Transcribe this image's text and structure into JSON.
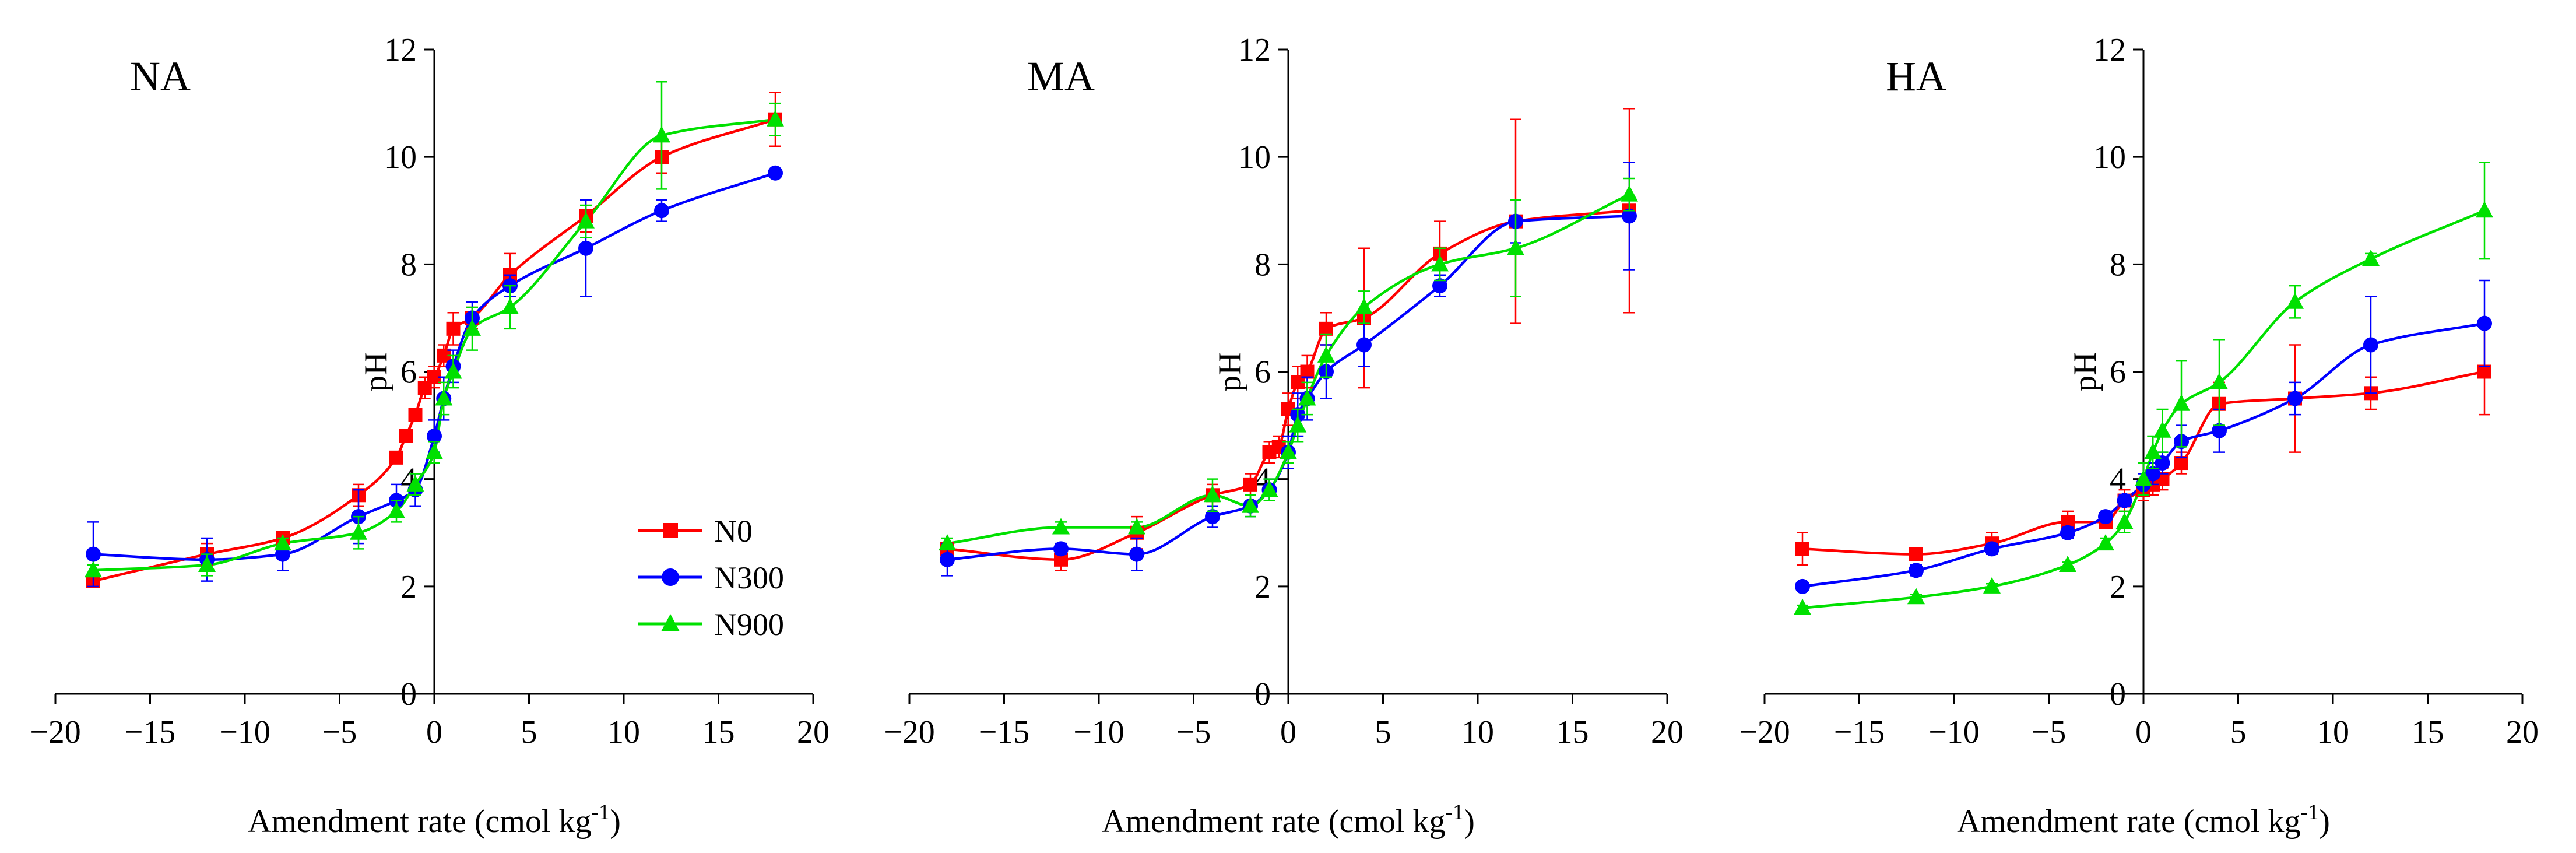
{
  "figure": {
    "y_tick_labels": [
      "0",
      "2",
      "4",
      "6",
      "8",
      "10",
      "12"
    ],
    "x_tick_labels": [
      "−20",
      "−15",
      "−10",
      "−5",
      "0",
      "5",
      "10",
      "15",
      "20"
    ],
    "xlabel_main": "Amendment rate (cmol kg",
    "xlabel_sup": "-1",
    "xlabel_close": ")",
    "ylabel": "pH",
    "legend": [
      "N0",
      "N300",
      "N900"
    ]
  },
  "colors": {
    "N0": "#ff0000",
    "N300": "#0000ff",
    "N900": "#00e000",
    "axis": "#000000"
  },
  "chart_data": [
    {
      "type": "line",
      "title": "NA",
      "xlabel": "Amendment rate (cmol kg-1)",
      "ylabel": "pH",
      "xlim": [
        -20,
        20
      ],
      "ylim": [
        0,
        12
      ],
      "series": [
        {
          "name": "N0",
          "marker": "square",
          "x": [
            -18,
            -12,
            -8,
            -4,
            -2,
            -1.5,
            -1,
            -0.5,
            0,
            0.5,
            1,
            2,
            4,
            8,
            12,
            18
          ],
          "y": [
            2.1,
            2.6,
            2.9,
            3.7,
            4.4,
            4.8,
            5.2,
            5.7,
            5.9,
            6.3,
            6.8,
            7.0,
            7.8,
            8.9,
            10.0,
            10.7
          ],
          "err": [
            0.05,
            0.2,
            0.1,
            0.2,
            0.1,
            0.1,
            0.1,
            0.2,
            0.2,
            0.2,
            0.3,
            0.2,
            0.4,
            0.3,
            0.3,
            0.5
          ]
        },
        {
          "name": "N300",
          "marker": "circle",
          "x": [
            -18,
            -12,
            -8,
            -4,
            -2,
            -1,
            0,
            0.5,
            1,
            2,
            4,
            8,
            12,
            18
          ],
          "y": [
            2.6,
            2.5,
            2.6,
            3.3,
            3.6,
            3.8,
            4.8,
            5.5,
            6.1,
            7.0,
            7.6,
            8.3,
            9.0,
            9.7
          ],
          "err": [
            0.6,
            0.4,
            0.3,
            0.5,
            0.3,
            0.3,
            0.3,
            0.4,
            0.3,
            0.3,
            0.2,
            0.9,
            0.2,
            0.05
          ]
        },
        {
          "name": "N900",
          "marker": "triangle",
          "x": [
            -18,
            -12,
            -8,
            -4,
            -2,
            -1,
            0,
            0.5,
            1,
            2,
            4,
            8,
            12,
            18
          ],
          "y": [
            2.3,
            2.4,
            2.8,
            3.0,
            3.4,
            3.9,
            4.5,
            5.5,
            6.0,
            6.8,
            7.2,
            8.8,
            10.4,
            10.7
          ],
          "err": [
            0.1,
            0.2,
            0.1,
            0.3,
            0.2,
            0.2,
            0.2,
            0.3,
            0.3,
            0.4,
            0.4,
            0.3,
            1.0,
            0.3
          ]
        }
      ]
    },
    {
      "type": "line",
      "title": "MA",
      "xlabel": "Amendment rate (cmol kg-1)",
      "ylabel": "pH",
      "xlim": [
        -20,
        20
      ],
      "ylim": [
        0,
        12
      ],
      "series": [
        {
          "name": "N0",
          "marker": "square",
          "x": [
            -18,
            -12,
            -8,
            -4,
            -2,
            -1,
            -0.5,
            0,
            0.5,
            1,
            2,
            4,
            8,
            12,
            18
          ],
          "y": [
            2.7,
            2.5,
            3.0,
            3.7,
            3.9,
            4.5,
            4.6,
            5.3,
            5.8,
            6.0,
            6.8,
            7.0,
            8.2,
            8.8,
            9.0
          ],
          "err": [
            0.1,
            0.2,
            0.3,
            0.2,
            0.2,
            0.2,
            0.2,
            0.3,
            0.3,
            0.3,
            0.3,
            1.3,
            0.6,
            1.9,
            1.9
          ]
        },
        {
          "name": "N300",
          "marker": "circle",
          "x": [
            -18,
            -12,
            -8,
            -4,
            -2,
            -1,
            0,
            0.5,
            1,
            2,
            4,
            8,
            12,
            18
          ],
          "y": [
            2.5,
            2.7,
            2.6,
            3.3,
            3.5,
            3.8,
            4.5,
            5.2,
            5.5,
            6.0,
            6.5,
            7.6,
            8.8,
            8.9
          ],
          "err": [
            0.3,
            0.1,
            0.3,
            0.2,
            0.2,
            0.2,
            0.3,
            0.4,
            0.4,
            0.5,
            0.4,
            0.2,
            0.4,
            1.0
          ]
        },
        {
          "name": "N900",
          "marker": "triangle",
          "x": [
            -18,
            -12,
            -8,
            -4,
            -2,
            -1,
            0,
            0.5,
            1,
            2,
            4,
            8,
            12,
            18
          ],
          "y": [
            2.8,
            3.1,
            3.1,
            3.7,
            3.5,
            3.8,
            4.5,
            5.0,
            5.5,
            6.3,
            7.2,
            8.0,
            8.3,
            9.3
          ],
          "err": [
            0.1,
            0.1,
            0.1,
            0.3,
            0.2,
            0.2,
            0.2,
            0.3,
            0.3,
            0.4,
            0.3,
            0.3,
            0.9,
            0.3
          ]
        }
      ]
    },
    {
      "type": "line",
      "title": "HA",
      "xlabel": "Amendment rate (cmol kg-1)",
      "ylabel": "pH",
      "xlim": [
        -20,
        20
      ],
      "ylim": [
        0,
        12
      ],
      "series": [
        {
          "name": "N0",
          "marker": "square",
          "x": [
            -18,
            -12,
            -8,
            -4,
            -2,
            -1,
            0,
            0.5,
            1,
            2,
            4,
            8,
            12,
            18
          ],
          "y": [
            2.7,
            2.6,
            2.8,
            3.2,
            3.2,
            3.6,
            3.8,
            3.9,
            4.0,
            4.3,
            5.4,
            5.5,
            5.6,
            6.0
          ],
          "err": [
            0.3,
            0.1,
            0.2,
            0.2,
            0.1,
            0.2,
            0.2,
            0.2,
            0.2,
            0.2,
            0.4,
            1.0,
            0.3,
            0.8
          ]
        },
        {
          "name": "N300",
          "marker": "circle",
          "x": [
            -18,
            -12,
            -8,
            -4,
            -2,
            -1,
            0,
            0.5,
            1,
            2,
            4,
            8,
            12,
            18
          ],
          "y": [
            2.0,
            2.3,
            2.7,
            3.0,
            3.3,
            3.6,
            3.9,
            4.1,
            4.3,
            4.7,
            4.9,
            5.5,
            6.5,
            6.9
          ],
          "err": [
            0.05,
            0.1,
            0.1,
            0.1,
            0.1,
            0.1,
            0.2,
            0.2,
            0.2,
            0.3,
            0.4,
            0.3,
            0.9,
            0.8
          ]
        },
        {
          "name": "N900",
          "marker": "triangle",
          "x": [
            -18,
            -12,
            -8,
            -4,
            -2,
            -1,
            0,
            0.5,
            1,
            2,
            4,
            8,
            12,
            18
          ],
          "y": [
            1.6,
            1.8,
            2.0,
            2.4,
            2.8,
            3.2,
            4.0,
            4.5,
            4.9,
            5.4,
            5.8,
            7.3,
            8.1,
            9.0
          ],
          "err": [
            0.05,
            0.05,
            0.05,
            0.05,
            0.1,
            0.2,
            0.3,
            0.3,
            0.4,
            0.8,
            0.8,
            0.3,
            0.1,
            0.9
          ]
        }
      ]
    }
  ]
}
